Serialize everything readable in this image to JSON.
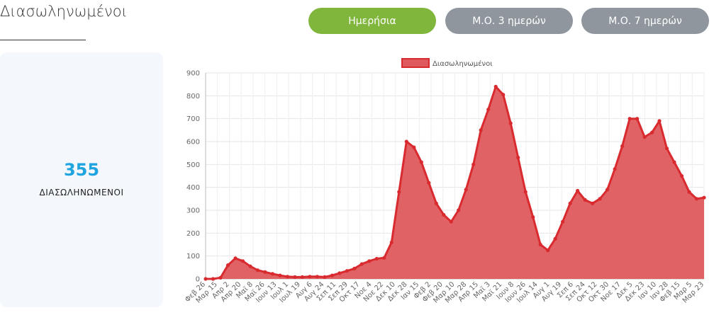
{
  "header": {
    "title": "Διασωληνωμένοι"
  },
  "buttons": [
    {
      "label": "Ημερήσια",
      "active": true
    },
    {
      "label": "Μ.Ο. 3 ημερών",
      "active": false
    },
    {
      "label": "Μ.Ο. 7 ημερών",
      "active": false
    }
  ],
  "stat": {
    "value": "355",
    "label": "ΔΙΑΣΩΛΗΝΩΜΕΝΟΙ"
  },
  "colors": {
    "series": "#d92b2f",
    "area": "#df5a5c",
    "active_button": "#80b63c",
    "inactive_button": "#8f969e",
    "stat_value": "#1fa4e0"
  },
  "chart_data": {
    "type": "area",
    "legend": {
      "label": "Διασωληνωμένοι",
      "position": "top"
    },
    "ylim": [
      0,
      900
    ],
    "yticks": [
      0,
      100,
      200,
      300,
      400,
      500,
      600,
      700,
      800,
      900
    ],
    "xtick_labels": [
      "Φεβ 26",
      "Μαρ 15",
      "Απρ 2",
      "Απρ 20",
      "Μαϊ 8",
      "Μαϊ 26",
      "Ιουν 13",
      "Ιουλ 1",
      "Ιουλ 19",
      "Αυγ 6",
      "Αυγ 24",
      "Σεπ 11",
      "Σεπ 29",
      "Οκτ 17",
      "Νοε 4",
      "Νοε 22",
      "Δεκ 10",
      "Δεκ 28",
      "Ιαν 15",
      "Φεβ 2",
      "Φεβ 20",
      "Μαρ 10",
      "Μαρ 28",
      "Απρ 15",
      "Μαϊ 3",
      "Μαϊ 21",
      "Ιουν 8",
      "Ιουν 26",
      "Ιουλ 14",
      "Αυγ 1",
      "Αυγ 19",
      "Σεπ 6",
      "Σεπ 24",
      "Οκτ 12",
      "Οκτ 30",
      "Νοε 17",
      "Δεκ 5",
      "Δεκ 23",
      "Ιαν 10",
      "Ιαν 28",
      "Φεβ 15",
      "Μαρ 5",
      "Μαρ 23"
    ],
    "series": [
      {
        "name": "Διασωληνωμένοι",
        "values": [
          0,
          0,
          5,
          60,
          90,
          78,
          55,
          38,
          30,
          22,
          15,
          10,
          8,
          8,
          10,
          10,
          8,
          15,
          25,
          35,
          45,
          65,
          78,
          88,
          92,
          160,
          380,
          600,
          575,
          510,
          420,
          330,
          280,
          250,
          300,
          390,
          500,
          650,
          740,
          840,
          805,
          680,
          530,
          380,
          270,
          150,
          125,
          175,
          250,
          330,
          385,
          345,
          330,
          350,
          390,
          480,
          580,
          700,
          700,
          620,
          640,
          690,
          570,
          510,
          450,
          380,
          350,
          355
        ]
      }
    ]
  }
}
